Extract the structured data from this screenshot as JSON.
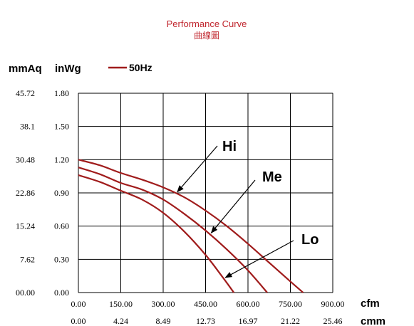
{
  "chart_data": {
    "type": "line",
    "title": "Performance Curve",
    "subtitle": "曲線圖",
    "legend": {
      "label": "50Hz",
      "placement": "top-left"
    },
    "y_units": [
      "mmAq",
      "inWg"
    ],
    "x_units": [
      "cfm",
      "cmm"
    ],
    "y_ticks_mmAq": [
      "45.72",
      "38.1",
      "30.48",
      "22.86",
      "15.24",
      "7.62",
      "00.00"
    ],
    "y_ticks_inWg": [
      "1.80",
      "1.50",
      "1.20",
      "0.90",
      "0.60",
      "0.30",
      "0.00"
    ],
    "x_ticks_cfm": [
      "0.00",
      "150.00",
      "300.00",
      "450.00",
      "600.00",
      "750.00",
      "900.00"
    ],
    "x_ticks_cmm": [
      "0.00",
      "4.24",
      "8.49",
      "12.73",
      "16.97",
      "21.22",
      "25.46"
    ],
    "xlim": [
      0,
      900
    ],
    "ylim": [
      0,
      1.8
    ],
    "grid": true,
    "series": [
      {
        "name": "Hi",
        "x": [
          0,
          75,
          150,
          225,
          300,
          375,
          450,
          525,
          600,
          675,
          750,
          795
        ],
        "y": [
          1.2,
          1.15,
          1.08,
          1.02,
          0.95,
          0.86,
          0.74,
          0.6,
          0.44,
          0.27,
          0.1,
          0.0
        ]
      },
      {
        "name": "Me",
        "x": [
          0,
          75,
          150,
          225,
          300,
          375,
          450,
          525,
          600,
          668
        ],
        "y": [
          1.13,
          1.07,
          0.99,
          0.93,
          0.84,
          0.71,
          0.56,
          0.39,
          0.2,
          0.0
        ]
      },
      {
        "name": "Lo",
        "x": [
          0,
          75,
          150,
          225,
          300,
          375,
          450,
          510,
          550
        ],
        "y": [
          1.06,
          1.0,
          0.92,
          0.84,
          0.72,
          0.55,
          0.34,
          0.14,
          0.0
        ]
      }
    ],
    "annotations": [
      {
        "label": "Hi",
        "series": "Hi",
        "at_x": 345
      },
      {
        "label": "Me",
        "series": "Me",
        "at_x": 465
      },
      {
        "label": "Lo",
        "series": "Lo",
        "at_x": 515
      }
    ],
    "colors": {
      "series": "#a01c1c",
      "title": "#c0262e",
      "grid": "#000000",
      "text": "#000000"
    }
  }
}
